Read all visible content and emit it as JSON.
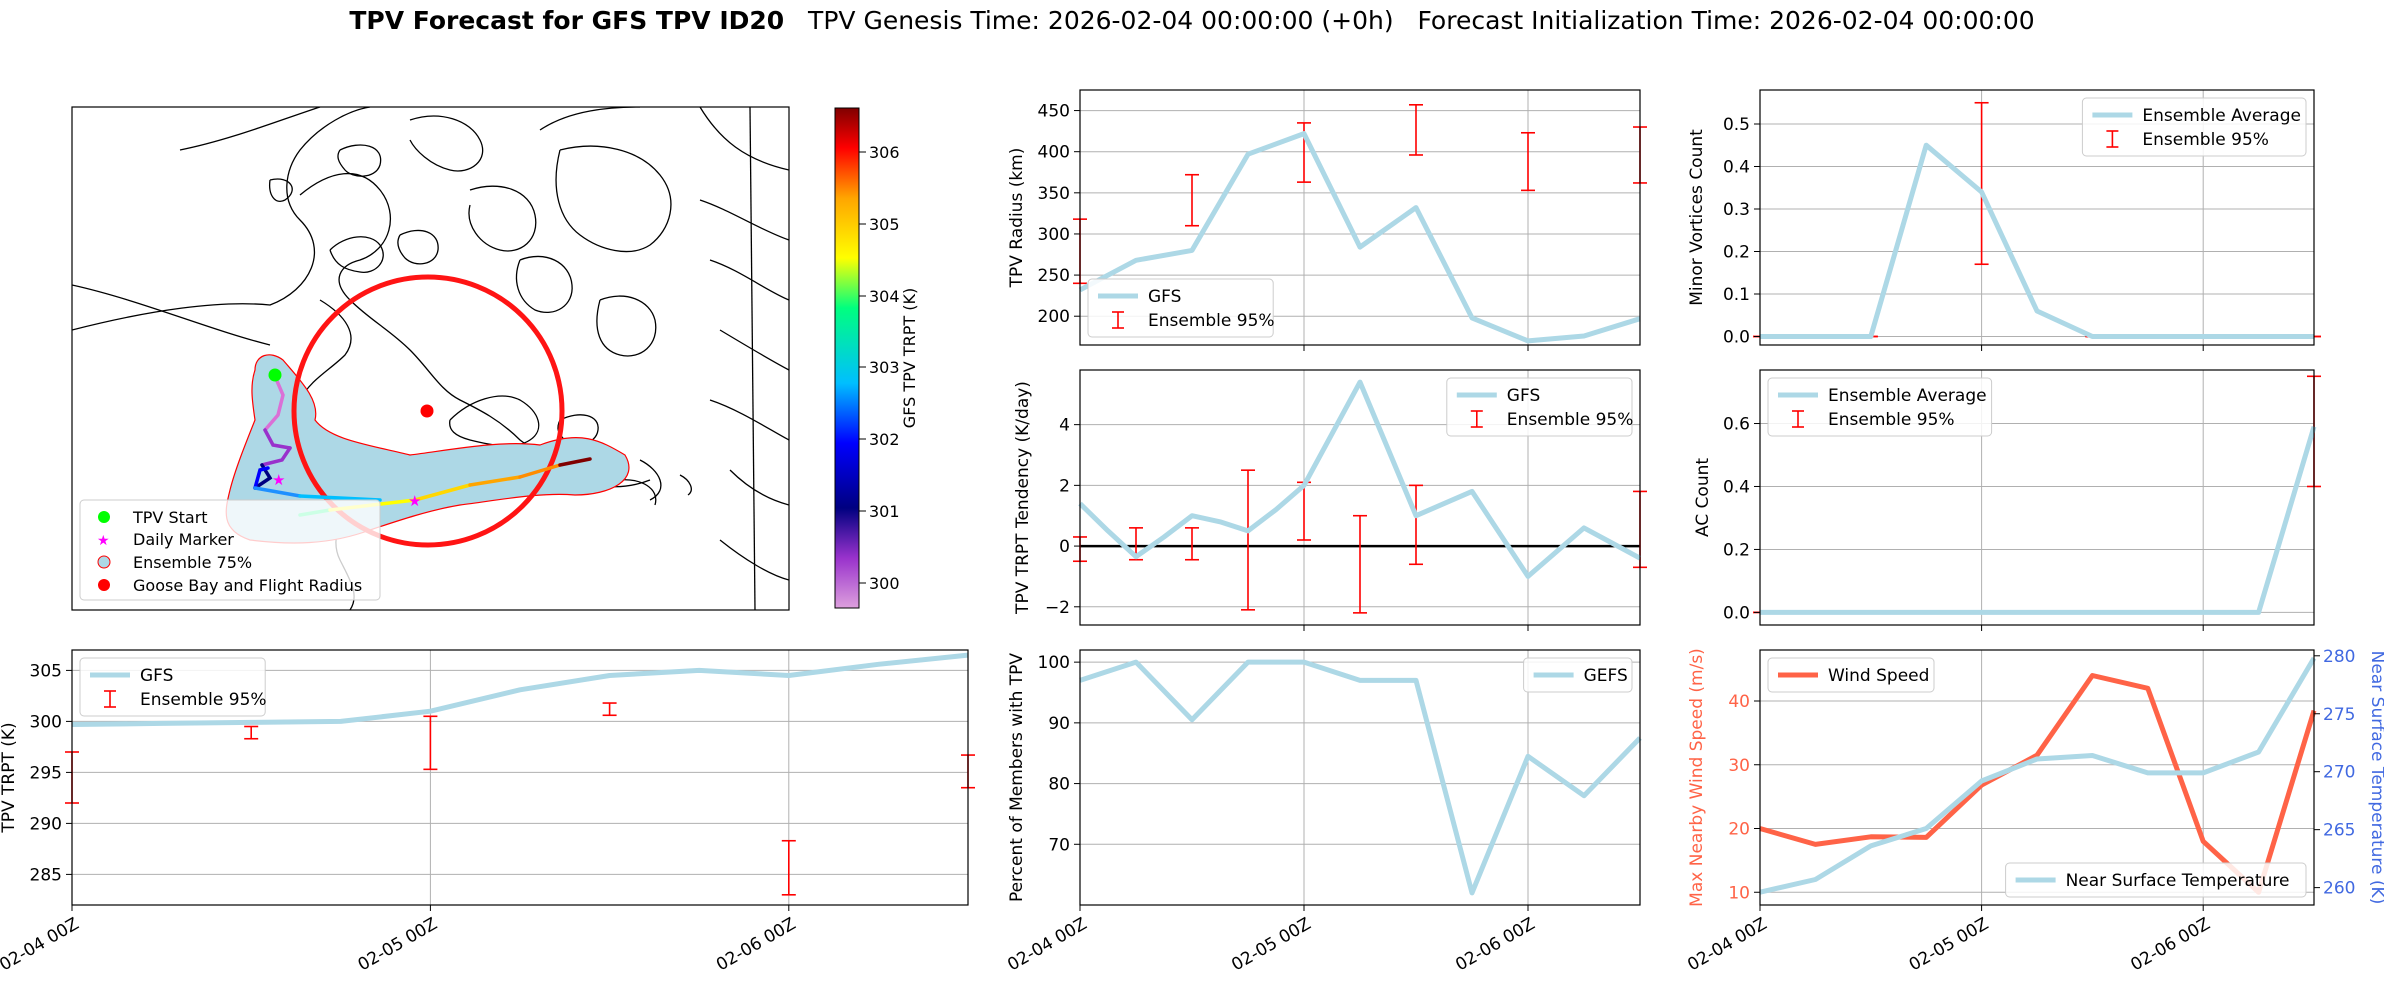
{
  "title": {
    "main": "TPV Forecast for GFS TPV ID20",
    "genesis": "TPV Genesis Time: 2026-02-04 00:00:00 (+0h)",
    "init": "Forecast Initialization Time: 2026-02-04 00:00:00"
  },
  "map": {
    "legend": [
      "TPV Start",
      "Daily Marker",
      "Ensemble 75%",
      "Goose Bay and Flight Radius"
    ],
    "colorbar_label": "GFS TPV TRPT (K)",
    "colorbar_ticks": [
      "300",
      "301",
      "302",
      "303",
      "304",
      "305",
      "306"
    ]
  },
  "colors": {
    "gfs": "#add8e6",
    "ensemble": "#ff0000",
    "wind": "#ff6347",
    "temp_axis": "#4169e1",
    "zero_line": "#000000"
  },
  "chart_data": [
    {
      "id": "radius",
      "type": "line",
      "ylabel": "TPV Radius (km)",
      "ylim": [
        165,
        475
      ],
      "yticks": [
        200,
        250,
        300,
        350,
        400,
        450
      ],
      "xlim": [
        0,
        60
      ],
      "xticks": [
        24,
        48
      ],
      "legend": [
        "GFS",
        "Ensemble 95%"
      ],
      "legend_loc": "lower-left",
      "series": [
        {
          "name": "GFS",
          "x": [
            0,
            6,
            12,
            18,
            24,
            30,
            36,
            42,
            48,
            54,
            60
          ],
          "values": [
            232,
            268,
            280,
            397,
            422,
            284,
            332,
            198,
            170,
            176,
            197
          ]
        }
      ],
      "errorbars": [
        [
          0,
          240,
          318
        ],
        [
          12,
          310,
          372
        ],
        [
          24,
          363,
          435
        ],
        [
          36,
          396,
          457
        ],
        [
          48,
          353,
          423
        ],
        [
          60,
          362,
          430
        ]
      ]
    },
    {
      "id": "minor",
      "type": "line",
      "ylabel": "Minor Vortices Count",
      "ylim": [
        -0.02,
        0.58
      ],
      "yticks": [
        "0.0",
        "0.1",
        "0.2",
        "0.3",
        "0.4",
        "0.5"
      ],
      "xlim": [
        0,
        60
      ],
      "xticks": [
        24,
        48
      ],
      "legend": [
        "Ensemble Average",
        "Ensemble 95%"
      ],
      "legend_loc": "upper-right",
      "series": [
        {
          "name": "Ensemble Average",
          "x": [
            0,
            6,
            12,
            18,
            24,
            30,
            36,
            42,
            48,
            54,
            60
          ],
          "values": [
            0,
            0,
            0,
            0.45,
            0.34,
            0.06,
            0,
            0,
            0,
            0,
            0
          ]
        }
      ],
      "errorbars": [
        [
          0,
          0,
          0
        ],
        [
          12,
          0,
          0
        ],
        [
          24,
          0.17,
          0.55
        ],
        [
          36,
          0,
          0
        ],
        [
          48,
          0,
          0
        ],
        [
          60,
          0,
          0
        ]
      ]
    },
    {
      "id": "tendency",
      "type": "line",
      "ylabel": "TPV TRPT Tendency (K/day)",
      "ylim": [
        -2.6,
        5.8
      ],
      "yticks": [
        "−2",
        "0",
        "2",
        "4"
      ],
      "xlim": [
        0,
        60
      ],
      "xticks": [
        24,
        48
      ],
      "legend": [
        "GFS",
        "Ensemble 95%"
      ],
      "legend_loc": "upper-right",
      "zero_line": true,
      "series": [
        {
          "name": "GFS",
          "x": [
            0,
            3,
            6,
            9,
            12,
            15,
            18,
            21,
            24,
            27,
            30,
            33,
            36,
            39,
            42,
            45,
            48,
            51,
            54,
            57,
            60
          ],
          "values": [
            1.4,
            0.5,
            -0.35,
            0.3,
            1.0,
            0.8,
            0.5,
            1.2,
            2.0,
            3.7,
            5.4,
            3.2,
            1.0,
            1.4,
            1.8,
            0.4,
            -1.0,
            -0.2,
            0.6,
            0.1,
            -0.4
          ]
        }
      ],
      "errorbars": [
        [
          0,
          -0.5,
          0.3
        ],
        [
          6,
          -0.45,
          0.6
        ],
        [
          12,
          -0.45,
          0.6
        ],
        [
          18,
          -2.1,
          2.5
        ],
        [
          24,
          0.2,
          2.1
        ],
        [
          30,
          -2.2,
          1.0
        ],
        [
          36,
          -0.6,
          2.0
        ],
        [
          60,
          -0.7,
          1.8
        ]
      ]
    },
    {
      "id": "ac",
      "type": "line",
      "ylabel": "AC Count",
      "ylim": [
        -0.04,
        0.77
      ],
      "yticks": [
        "0.0",
        "0.2",
        "0.4",
        "0.6"
      ],
      "xlim": [
        0,
        60
      ],
      "xticks": [
        24,
        48
      ],
      "legend": [
        "Ensemble Average",
        "Ensemble 95%"
      ],
      "legend_loc": "upper-left",
      "series": [
        {
          "name": "Ensemble Average",
          "x": [
            0,
            6,
            12,
            18,
            24,
            30,
            36,
            42,
            48,
            54,
            60
          ],
          "values": [
            0,
            0,
            0,
            0,
            0,
            0,
            0,
            0,
            0,
            0,
            0.59
          ]
        }
      ],
      "errorbars": [
        [
          0,
          0,
          0
        ],
        [
          12,
          0,
          0
        ],
        [
          24,
          0,
          0
        ],
        [
          36,
          0,
          0
        ],
        [
          48,
          0,
          0
        ],
        [
          60,
          0.4,
          0.75
        ]
      ]
    },
    {
      "id": "trpt",
      "type": "line",
      "ylabel": "TPV TRPT (K)",
      "ylim": [
        282,
        307
      ],
      "yticks": [
        285,
        290,
        295,
        300,
        305
      ],
      "xlim": [
        0,
        60
      ],
      "xticks": [
        0,
        24,
        48
      ],
      "xticklabels": [
        "02-04 00Z",
        "02-05 00Z",
        "02-06 00Z"
      ],
      "legend": [
        "GFS",
        "Ensemble 95%"
      ],
      "legend_loc": "upper-left",
      "series": [
        {
          "name": "GFS",
          "x": [
            0,
            6,
            12,
            18,
            24,
            30,
            36,
            42,
            48,
            54,
            60
          ],
          "values": [
            299.7,
            299.8,
            299.9,
            300.0,
            301.0,
            303.1,
            304.5,
            305.0,
            304.5,
            305.6,
            306.5
          ]
        }
      ],
      "errorbars": [
        [
          0,
          292,
          297
        ],
        [
          12,
          298.3,
          299.5
        ],
        [
          24,
          295.3,
          300.5
        ],
        [
          36,
          300.6,
          301.8
        ],
        [
          48,
          283,
          288.3
        ],
        [
          60,
          293.5,
          296.7
        ]
      ]
    },
    {
      "id": "percent",
      "type": "line",
      "ylabel": "Percent of Members with TPV",
      "ylim": [
        60,
        102
      ],
      "yticks": [
        70,
        80,
        90,
        100
      ],
      "xlim": [
        0,
        60
      ],
      "xticks": [
        0,
        24,
        48
      ],
      "xticklabels": [
        "02-04 00Z",
        "02-05 00Z",
        "02-06 00Z"
      ],
      "legend": [
        "GEFS"
      ],
      "legend_loc": "upper-right",
      "series": [
        {
          "name": "GEFS",
          "x": [
            0,
            6,
            12,
            18,
            24,
            30,
            36,
            42,
            48,
            54,
            60
          ],
          "values": [
            97,
            100,
            90.5,
            100,
            100,
            97,
            97,
            62,
            84.5,
            78,
            87.5
          ]
        }
      ]
    },
    {
      "id": "wind",
      "type": "line",
      "ylabel": "Max Nearby Wind Speed (m/s)",
      "ylim": [
        8,
        48
      ],
      "yticks": [
        10,
        20,
        30,
        40
      ],
      "y2label": "Near Surface Temperature (K)",
      "y2lim": [
        258.5,
        280.5
      ],
      "y2ticks": [
        260,
        265,
        270,
        275,
        280
      ],
      "xlim": [
        0,
        60
      ],
      "xticks": [
        0,
        24,
        48
      ],
      "xticklabels": [
        "02-04 00Z",
        "02-05 00Z",
        "02-06 00Z"
      ],
      "legend": [
        "Wind Speed"
      ],
      "legend2": [
        "Near Surface Temperature"
      ],
      "series": [
        {
          "name": "Wind Speed",
          "axis": "left",
          "x": [
            0,
            6,
            12,
            18,
            24,
            30,
            36,
            42,
            48,
            54,
            60
          ],
          "values": [
            20,
            17.5,
            18.7,
            18.6,
            26.8,
            31.5,
            44,
            42,
            18,
            10,
            38.5
          ]
        },
        {
          "name": "Near Surface Temperature",
          "axis": "right",
          "x": [
            0,
            6,
            12,
            18,
            24,
            30,
            36,
            42,
            48,
            54,
            60
          ],
          "values": [
            259.6,
            260.7,
            263.6,
            265.1,
            269.2,
            271.1,
            271.4,
            269.9,
            269.9,
            271.7,
            279.8
          ]
        }
      ]
    }
  ]
}
